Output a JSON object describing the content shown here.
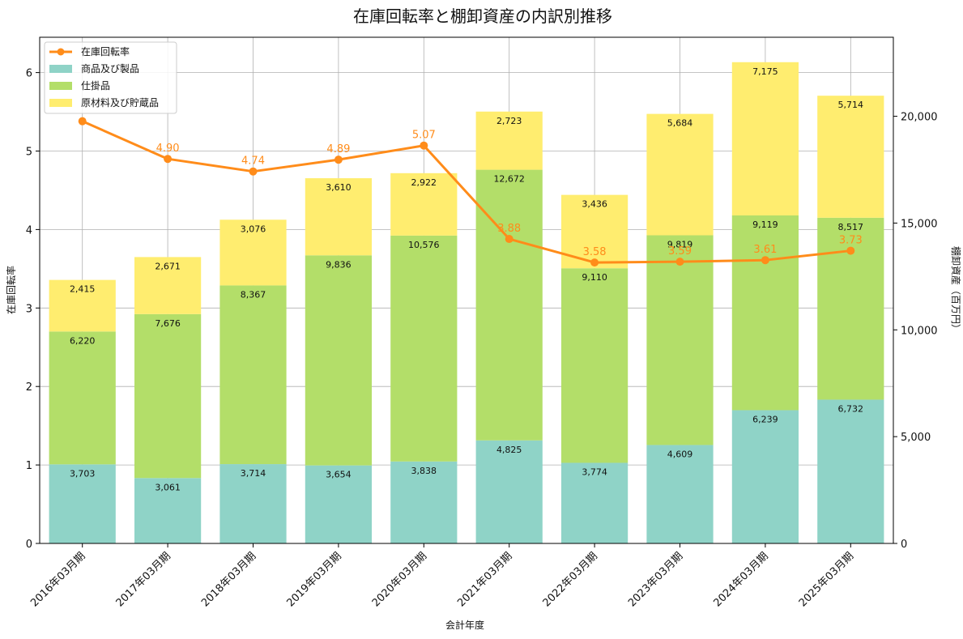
{
  "chart_data": {
    "type": "bar",
    "stacked": true,
    "title": "在庫回転率と棚卸資産の内訳別推移",
    "xlabel": "会計年度",
    "ylabel_left": "在庫回転率",
    "ylabel_right": "棚卸資産（百万円）",
    "ylim_left": [
      0,
      6.45
    ],
    "ylim_right": [
      0,
      23700
    ],
    "yticks_left": [
      0,
      1,
      2,
      3,
      4,
      5,
      6
    ],
    "yticks_right": [
      0,
      5000,
      10000,
      15000,
      20000
    ],
    "yticks_right_labels": [
      "0",
      "5,000",
      "10,000",
      "15,000",
      "20,000"
    ],
    "grid": true,
    "legend_position": "top-left",
    "categories": [
      "2016年03月期",
      "2017年03月期",
      "2018年03月期",
      "2019年03月期",
      "2020年03月期",
      "2021年03月期",
      "2022年03月期",
      "2023年03月期",
      "2024年03月期",
      "2025年03月期"
    ],
    "series": [
      {
        "name": "商品及び製品",
        "axis": "right",
        "color": "#8fd3c7",
        "values": [
          3703,
          3061,
          3714,
          3654,
          3838,
          4825,
          3774,
          4609,
          6239,
          6732
        ],
        "labels": [
          "3,703",
          "3,061",
          "3,714",
          "3,654",
          "3,838",
          "4,825",
          "3,774",
          "4,609",
          "6,239",
          "6,732"
        ]
      },
      {
        "name": "仕掛品",
        "axis": "right",
        "color": "#b3de69",
        "values": [
          6220,
          7676,
          8367,
          9836,
          10576,
          12672,
          9110,
          9819,
          9119,
          8517
        ],
        "labels": [
          "6,220",
          "7,676",
          "8,367",
          "9,836",
          "10,576",
          "12,672",
          "9,110",
          "9,819",
          "9,119",
          "8,517"
        ]
      },
      {
        "name": "原材料及び貯蔵品",
        "axis": "right",
        "color": "#ffed6f",
        "values": [
          2415,
          2671,
          3076,
          3610,
          2922,
          2723,
          3436,
          5684,
          7175,
          5714
        ],
        "labels": [
          "2,415",
          "2,671",
          "3,076",
          "3,610",
          "2,922",
          "2,723",
          "3,436",
          "5,684",
          "7,175",
          "5,714"
        ]
      }
    ],
    "line": {
      "name": "在庫回転率",
      "axis": "left",
      "color": "#ff8c1a",
      "values": [
        5.38,
        4.9,
        4.74,
        4.89,
        5.07,
        3.88,
        3.58,
        3.59,
        3.61,
        3.73
      ],
      "labels": [
        "",
        "4.90",
        "4.74",
        "4.89",
        "5.07",
        "3.88",
        "3.58",
        "3.59",
        "3.61",
        "3.73"
      ]
    }
  }
}
